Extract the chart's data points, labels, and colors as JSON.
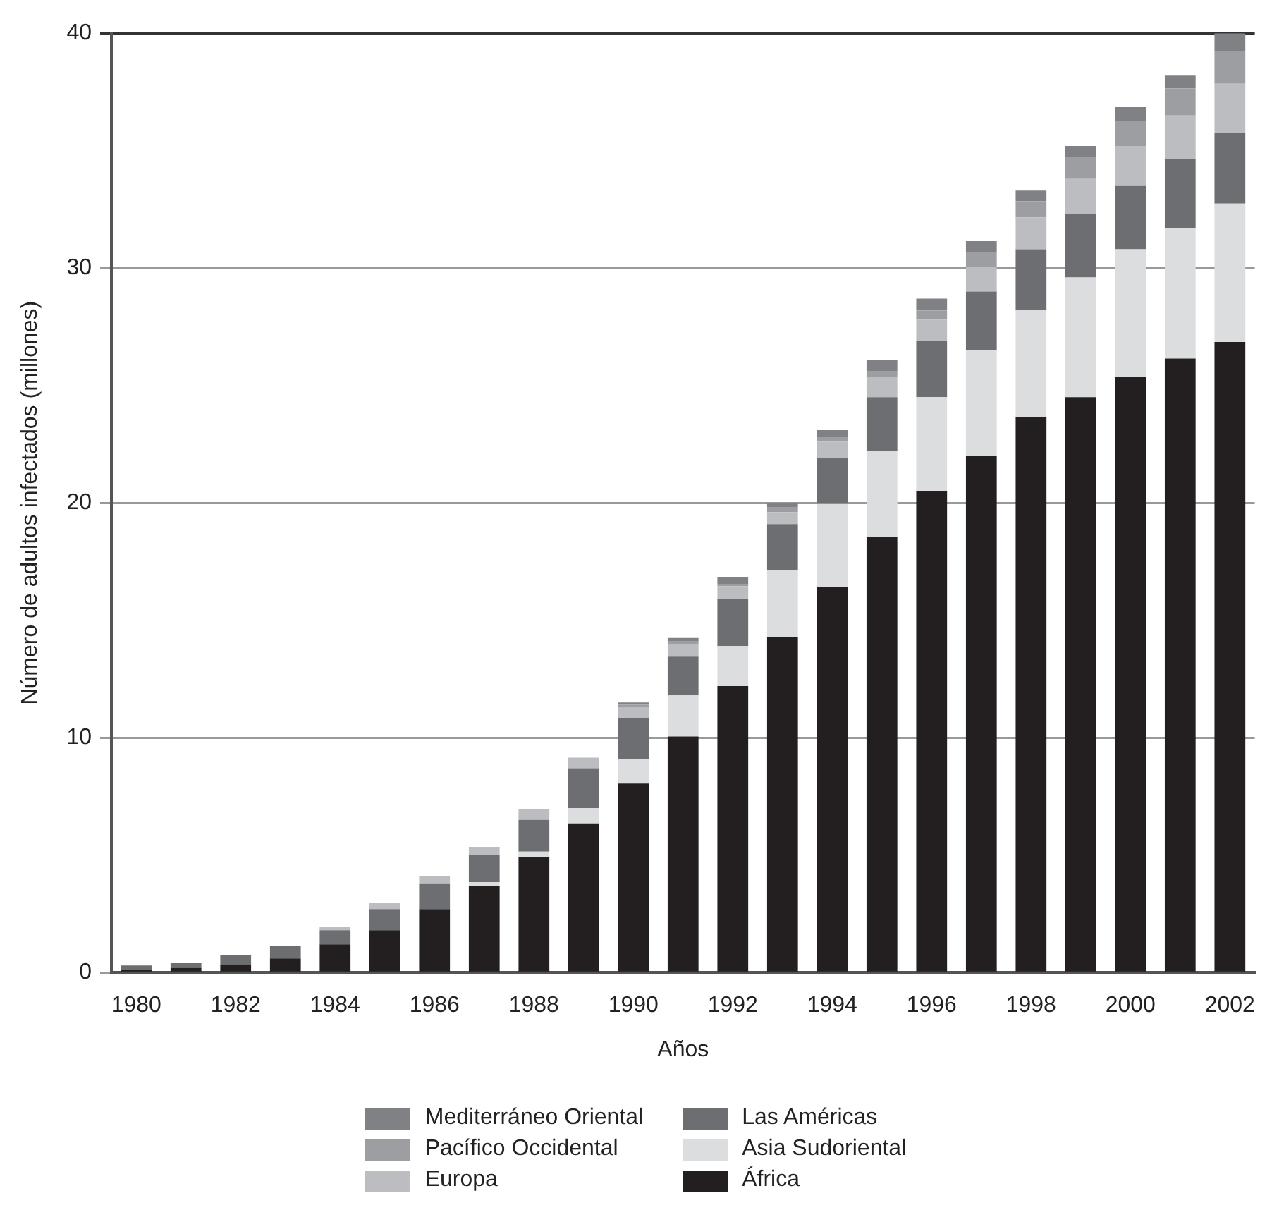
{
  "chart_data": {
    "type": "bar",
    "stacked": true,
    "xlabel": "Años",
    "ylabel": "Número de adultos infectados (millones)",
    "categories": [
      "1980",
      null,
      "1982",
      null,
      "1984",
      null,
      "1986",
      null,
      "1988",
      null,
      "1990",
      null,
      "1992",
      null,
      "1994",
      null,
      "1996",
      null,
      "1998",
      null,
      "2000",
      null,
      "2002"
    ],
    "series": [
      {
        "name": "África",
        "color": "#231f20",
        "values": [
          0.1,
          0.2,
          0.35,
          0.6,
          1.2,
          1.8,
          2.7,
          3.7,
          4.9,
          6.35,
          8.05,
          10.05,
          12.2,
          14.3,
          16.4,
          18.55,
          20.5,
          22.0,
          23.65,
          24.5,
          25.35,
          26.15,
          26.85
        ]
      },
      {
        "name": "Asia Sudoriental",
        "color": "#dcdddf",
        "values": [
          0,
          0,
          0,
          0,
          0,
          0,
          0,
          0.15,
          0.25,
          0.65,
          1.05,
          1.75,
          1.7,
          2.85,
          3.55,
          3.65,
          4.0,
          4.5,
          4.55,
          5.1,
          5.45,
          5.55,
          5.9
        ]
      },
      {
        "name": "Las Américas",
        "color": "#6d6e71",
        "values": [
          0.2,
          0.2,
          0.4,
          0.55,
          0.6,
          0.9,
          1.1,
          1.15,
          1.35,
          1.7,
          1.75,
          1.65,
          2.0,
          1.95,
          1.95,
          2.3,
          2.4,
          2.5,
          2.6,
          2.7,
          2.7,
          2.95,
          3.0
        ]
      },
      {
        "name": "Europa",
        "color": "#bcbdc0",
        "values": [
          0,
          0,
          0,
          0,
          0.15,
          0.25,
          0.3,
          0.35,
          0.45,
          0.45,
          0.45,
          0.55,
          0.55,
          0.5,
          0.7,
          0.85,
          0.9,
          1.05,
          1.35,
          1.5,
          1.7,
          1.85,
          2.1
        ]
      },
      {
        "name": "Pacífico Occidental",
        "color": "#9d9ea1",
        "values": [
          0,
          0,
          0,
          0,
          0,
          0,
          0,
          0,
          0,
          0,
          0.1,
          0.1,
          0.1,
          0.2,
          0.2,
          0.25,
          0.4,
          0.65,
          0.7,
          0.95,
          1.05,
          1.15,
          1.4
        ]
      },
      {
        "name": "Mediterráneo Oriental",
        "color": "#808184",
        "values": [
          0,
          0,
          0,
          0,
          0,
          0,
          0,
          0,
          0,
          0,
          0.1,
          0.15,
          0.3,
          0.2,
          0.3,
          0.5,
          0.5,
          0.45,
          0.45,
          0.45,
          0.6,
          0.55,
          0.75
        ]
      }
    ],
    "ylim": [
      0,
      40
    ],
    "yticks": [
      0,
      10,
      20,
      30,
      40
    ],
    "grid": "y",
    "legend": "bottom"
  }
}
